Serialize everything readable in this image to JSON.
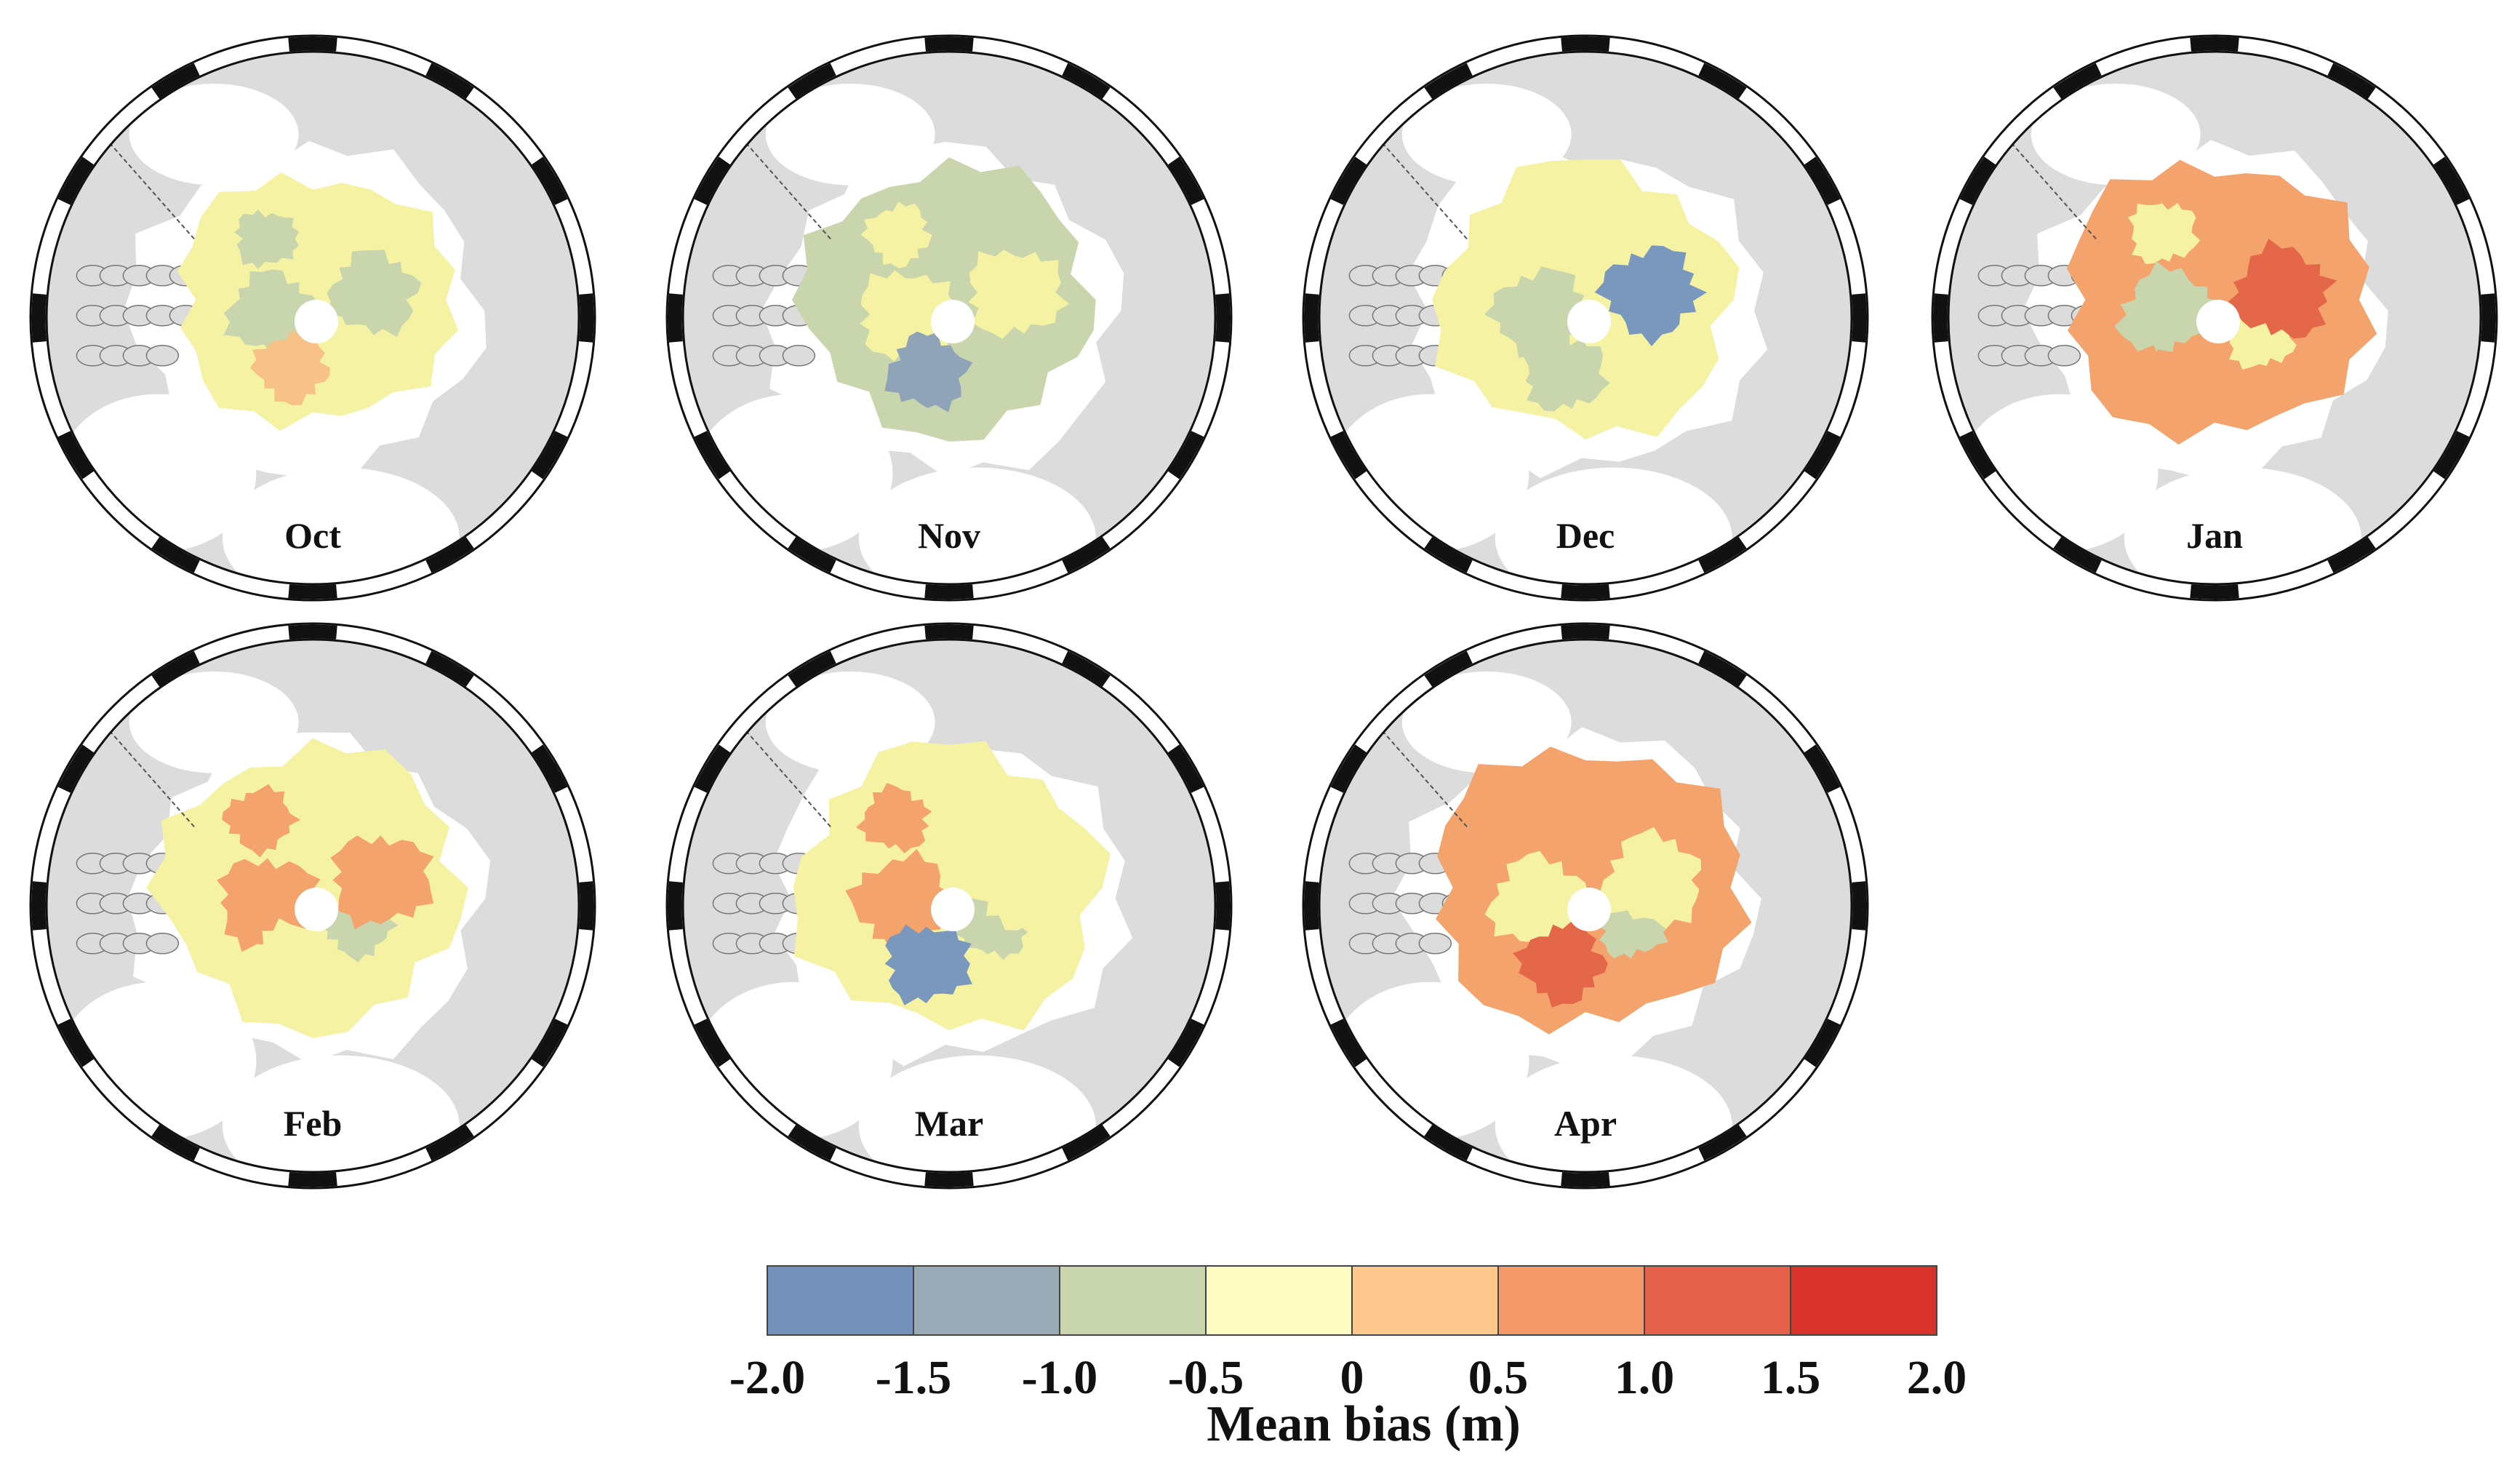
{
  "maps": [
    {
      "month": "Oct",
      "cover": 0.58,
      "pattern": [
        "#c9d5ad",
        "#f6f2a4",
        "#c9d5ad",
        "#f6f2a4",
        "#f7c187",
        "#c9d5ad"
      ]
    },
    {
      "month": "Nov",
      "cover": 0.72,
      "pattern": [
        "#f6f2a4",
        "#c9d5ad",
        "#f6f2a4",
        "#c9d5ad",
        "#8fa4b8",
        "#f6f2a4"
      ]
    },
    {
      "month": "Dec",
      "cover": 0.76,
      "pattern": [
        "#f6f2a4",
        "#f6f2a4",
        "#c9d5ad",
        "#f6f2a4",
        "#c9d5ad",
        "#7a97bd"
      ]
    },
    {
      "month": "Jan",
      "cover": 0.8,
      "pattern": [
        "#f6f2a4",
        "#f4a36c",
        "#c9d5ad",
        "#f6f2a4",
        "#f4a36c",
        "#e4674a"
      ]
    },
    {
      "month": "Feb",
      "cover": 0.82,
      "pattern": [
        "#f4a36c",
        "#f6f2a4",
        "#f4a36c",
        "#c9d5ad",
        "#f6f2a4",
        "#f4a36c"
      ]
    },
    {
      "month": "Mar",
      "cover": 0.84,
      "pattern": [
        "#f4a36c",
        "#f6f2a4",
        "#f4a36c",
        "#c9d5ad",
        "#7a97bd",
        "#f6f2a4"
      ]
    },
    {
      "month": "Apr",
      "cover": 0.84,
      "pattern": [
        "#f4a36c",
        "#f4a36c",
        "#f6f2a4",
        "#c9d5ad",
        "#e4674a",
        "#f6f2a4"
      ]
    }
  ],
  "legend": {
    "title": "Mean bias (m)",
    "ticks": [
      "-2.0",
      "-1.5",
      "-1.0",
      "-0.5",
      "0",
      "0.5",
      "1.0",
      "1.5",
      "2.0"
    ],
    "colors": [
      "#7391bb",
      "#9aabb8",
      "#c9d5ad",
      "#fdfdc3",
      "#fcc88e",
      "#f4996a",
      "#e4624a",
      "#d8322a"
    ]
  },
  "colors": {
    "land": "#dcdcdc",
    "ocean": "#ffffff",
    "frame": "#111111"
  }
}
